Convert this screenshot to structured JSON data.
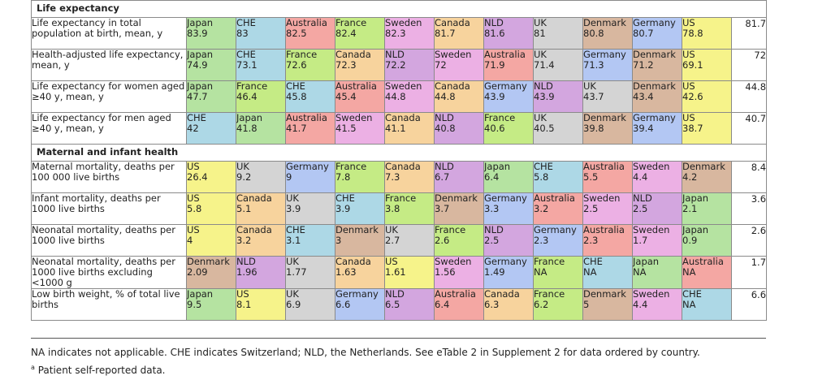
{
  "colors": {
    "Japan": "#b5e3a1",
    "CHE": "#add8e6",
    "Australia": "#f4a7a3",
    "France": "#c5eb85",
    "Sweden": "#ecb0e4",
    "Canada": "#f7d39d",
    "NLD": "#d3a6df",
    "UK": "#d4d4d4",
    "Denmark": "#d8b79f",
    "Germany": "#b3c7f3",
    "US": "#f6f38a"
  },
  "sections": [
    {
      "title": "Life expectancy",
      "rows": [
        {
          "label": "Life expectancy in total population at birth, mean, y",
          "average": "81.7",
          "cells": [
            [
              "Japan",
              "83.9"
            ],
            [
              "CHE",
              "83"
            ],
            [
              "Australia",
              "82.5"
            ],
            [
              "France",
              "82.4"
            ],
            [
              "Sweden",
              "82.3"
            ],
            [
              "Canada",
              "81.7"
            ],
            [
              "NLD",
              "81.6"
            ],
            [
              "UK",
              "81"
            ],
            [
              "Denmark",
              "80.8"
            ],
            [
              "Germany",
              "80.7"
            ],
            [
              "US",
              "78.8"
            ]
          ]
        },
        {
          "label": "Health-adjusted life expectancy, mean, y",
          "average": "72",
          "cells": [
            [
              "Japan",
              "74.9"
            ],
            [
              "CHE",
              "73.1"
            ],
            [
              "France",
              "72.6"
            ],
            [
              "Canada",
              "72.3"
            ],
            [
              "NLD",
              "72.2"
            ],
            [
              "Sweden",
              "72"
            ],
            [
              "Australia",
              "71.9"
            ],
            [
              "UK",
              "71.4"
            ],
            [
              "Germany",
              "71.3"
            ],
            [
              "Denmark",
              "71.2"
            ],
            [
              "US",
              "69.1"
            ]
          ]
        },
        {
          "label": "Life expectancy for women aged ≥40 y, mean, y",
          "average": "44.8",
          "cells": [
            [
              "Japan",
              "47.7"
            ],
            [
              "France",
              "46.4"
            ],
            [
              "CHE",
              "45.8"
            ],
            [
              "Australia",
              "45.4"
            ],
            [
              "Sweden",
              "44.8"
            ],
            [
              "Canada",
              "44.8"
            ],
            [
              "Germany",
              "43.9"
            ],
            [
              "NLD",
              "43.9"
            ],
            [
              "UK",
              "43.7"
            ],
            [
              "Denmark",
              "43.4"
            ],
            [
              "US",
              "42.6"
            ]
          ]
        },
        {
          "label": "Life expectancy for men aged ≥40 y, mean, y",
          "average": "40.7",
          "cells": [
            [
              "CHE",
              "42"
            ],
            [
              "Japan",
              "41.8"
            ],
            [
              "Australia",
              "41.7"
            ],
            [
              "Sweden",
              "41.5"
            ],
            [
              "Canada",
              "41.1"
            ],
            [
              "NLD",
              "40.8"
            ],
            [
              "France",
              "40.6"
            ],
            [
              "UK",
              "40.5"
            ],
            [
              "Denmark",
              "39.8"
            ],
            [
              "Germany",
              "39.4"
            ],
            [
              "US",
              "38.7"
            ]
          ]
        }
      ]
    },
    {
      "title": "Maternal and infant health",
      "rows": [
        {
          "label": "Maternal mortality, deaths per 100 000 live births",
          "average": "8.4",
          "cells": [
            [
              "US",
              "26.4"
            ],
            [
              "UK",
              "9.2"
            ],
            [
              "Germany",
              "9"
            ],
            [
              "France",
              "7.8"
            ],
            [
              "Canada",
              "7.3"
            ],
            [
              "NLD",
              "6.7"
            ],
            [
              "Japan",
              "6.4"
            ],
            [
              "CHE",
              "5.8"
            ],
            [
              "Australia",
              "5.5"
            ],
            [
              "Sweden",
              "4.4"
            ],
            [
              "Denmark",
              "4.2"
            ]
          ]
        },
        {
          "label": "Infant mortality, deaths per 1000 live births",
          "average": "3.6",
          "cells": [
            [
              "US",
              "5.8"
            ],
            [
              "Canada",
              "5.1"
            ],
            [
              "UK",
              "3.9"
            ],
            [
              "CHE",
              "3.9"
            ],
            [
              "France",
              "3.8"
            ],
            [
              "Denmark",
              "3.7"
            ],
            [
              "Germany",
              "3.3"
            ],
            [
              "Australia",
              "3.2"
            ],
            [
              "Sweden",
              "2.5"
            ],
            [
              "NLD",
              "2.5"
            ],
            [
              "Japan",
              "2.1"
            ]
          ]
        },
        {
          "label": "Neonatal mortality, deaths per 1000 live births",
          "average": "2.6",
          "cells": [
            [
              "US",
              "4"
            ],
            [
              "Canada",
              "3.2"
            ],
            [
              "CHE",
              "3.1"
            ],
            [
              "Denmark",
              "3"
            ],
            [
              "UK",
              "2.7"
            ],
            [
              "France",
              "2.6"
            ],
            [
              "NLD",
              "2.5"
            ],
            [
              "Germany",
              "2.3"
            ],
            [
              "Australia",
              "2.3"
            ],
            [
              "Sweden",
              "1.7"
            ],
            [
              "Japan",
              "0.9"
            ]
          ]
        },
        {
          "label": "Neonatal mortality, deaths per 1000 live births excluding <1000 g",
          "average": "1.7",
          "cells": [
            [
              "Denmark",
              "2.09"
            ],
            [
              "NLD",
              "1.96"
            ],
            [
              "UK",
              "1.77"
            ],
            [
              "Canada",
              "1.63"
            ],
            [
              "US",
              "1.61"
            ],
            [
              "Sweden",
              "1.56"
            ],
            [
              "Germany",
              "1.49"
            ],
            [
              "France",
              "NA"
            ],
            [
              "CHE",
              "NA"
            ],
            [
              "Japan",
              "NA"
            ],
            [
              "Australia",
              "NA"
            ]
          ]
        },
        {
          "label": "Low birth weight, % of total live births",
          "average": "6.6",
          "cells": [
            [
              "Japan",
              "9.5"
            ],
            [
              "US",
              "8.1"
            ],
            [
              "UK",
              "6.9"
            ],
            [
              "Germany",
              "6.6"
            ],
            [
              "NLD",
              "6.5"
            ],
            [
              "Australia",
              "6.4"
            ],
            [
              "Canada",
              "6.3"
            ],
            [
              "France",
              "6.2"
            ],
            [
              "Denmark",
              "5"
            ],
            [
              "Sweden",
              "4.4"
            ],
            [
              "CHE",
              "NA"
            ]
          ]
        }
      ]
    }
  ],
  "notes": {
    "line1": "NA indicates not applicable. CHE indicates Switzerland; NLD, the Netherlands. See eTable 2 in Supplement 2 for data ordered by country.",
    "line2_marker": "a",
    "line2_text": " Patient self-reported data."
  }
}
